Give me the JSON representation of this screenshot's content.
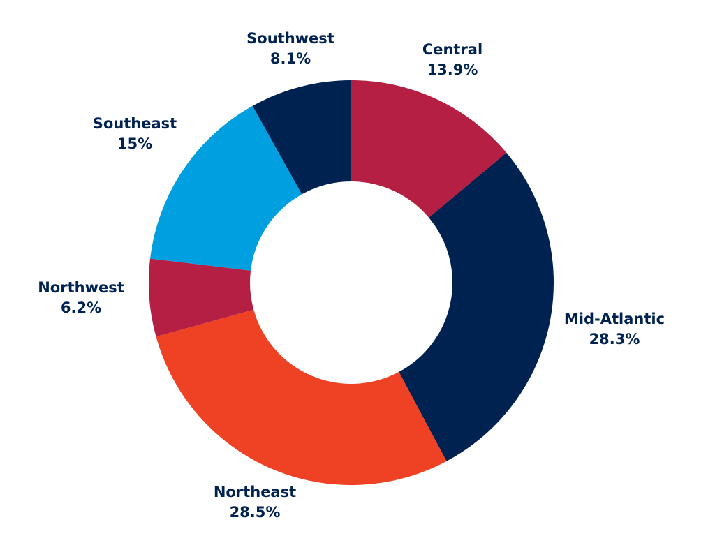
{
  "chart_data": {
    "type": "pie",
    "variant": "donut",
    "title": "",
    "start": "12 o'clock, clockwise",
    "slices": [
      {
        "label": "Central",
        "value": 13.9,
        "value_label": "13.9%",
        "color": "#B41F43"
      },
      {
        "label": "Mid-Atlantic",
        "value": 28.3,
        "value_label": "28.3%",
        "color": "#002250"
      },
      {
        "label": "Northeast",
        "value": 28.5,
        "value_label": "28.5%",
        "color": "#EF4123"
      },
      {
        "label": "Northwest",
        "value": 6.2,
        "value_label": "6.2%",
        "color": "#B41F43"
      },
      {
        "label": "Southeast",
        "value": 15,
        "value_label": "15%",
        "color": "#009FDF"
      },
      {
        "label": "Southwest",
        "value": 8.1,
        "value_label": "8.1%",
        "color": "#002250"
      }
    ],
    "label_color": "#002250"
  }
}
